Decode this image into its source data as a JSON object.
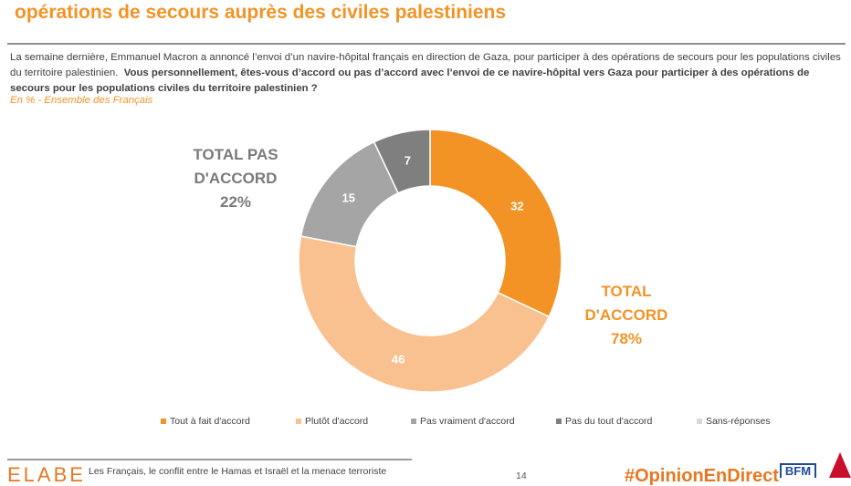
{
  "header": {
    "title": "opérations de secours auprès des civiles palestiniens",
    "intro_plain": "La semaine dernière, Emmanuel Macron a annoncé l’envoi d’un navire-hôpital français en direction de Gaza, pour participer à des opérations de secours pour les populations civiles du territoire palestinien.",
    "intro_question": "Vous personnellement, êtes-vous d’accord ou pas d’accord avec l’envoi de ce navire-hôpital vers Gaza pour participer à des opérations de secours pour les populations civiles du territoire palestinien ?",
    "subtitle": "En % - Ensemble des Français"
  },
  "totals": {
    "disagree_line1": "TOTAL PAS",
    "disagree_line2": "D'ACCORD",
    "disagree_value": "22%",
    "agree_line1": "TOTAL",
    "agree_line2": "D'ACCORD",
    "agree_value": "78%"
  },
  "chart_data": {
    "type": "pie",
    "subtype": "donut",
    "title": "",
    "unit": "%",
    "categories": [
      "Tout à fait d'accord",
      "Plutôt d'accord",
      "Pas vraiment d'accord",
      "Pas du tout d'accord",
      "Sans-réponses"
    ],
    "values": [
      32,
      46,
      15,
      7,
      0
    ],
    "labels": [
      "32",
      "46",
      "15",
      "7",
      ""
    ],
    "colors": [
      "#f39325",
      "#f9c18f",
      "#a5a5a5",
      "#7f7f7f",
      "#d9d9d9"
    ],
    "legend_position": "bottom",
    "start": "top, clockwise"
  },
  "footer": {
    "logo": "ELABE",
    "text": "Les Français, le conflit entre le Hamas et Israël et la menace terroriste",
    "page": "14",
    "hashtag": "#OpinionEnDirect",
    "partner": "BFM"
  }
}
